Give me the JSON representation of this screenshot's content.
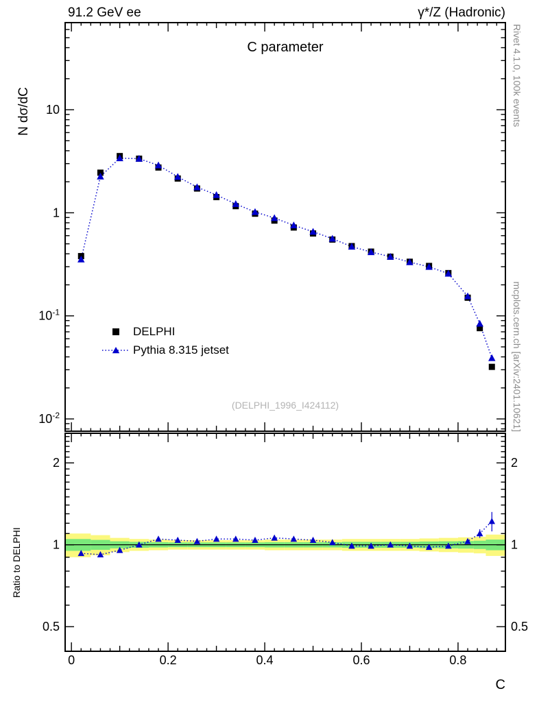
{
  "texts": {
    "header_left": "91.2 GeV ee",
    "header_right": "γ*/Z (Hadronic)",
    "right_top": "Rivet 4.1.0, 100k events",
    "right_bottom": "mcplots.cern.ch [arXiv:2401.10621]",
    "watermark": "(DELPHI_1996_I424112)"
  },
  "colors": {
    "mc_blue": "#0000cc",
    "data_black": "#000000",
    "band_yellow": "#fbf87e",
    "band_green": "#7be87b",
    "frame_black": "#000000",
    "gray_label": "#8c8c8c",
    "watermark_gray": "#b4b4b4"
  },
  "chart_data": {
    "type": "line",
    "title": "C parameter",
    "xlabel": "C",
    "ylabel": "N dσ/dC",
    "ratio_ylabel": "Ratio to DELPHI",
    "legend_position": "middle-left",
    "x_range": [
      -0.013,
      0.898
    ],
    "y_range": [
      0.0076,
      70
    ],
    "ratio_range": [
      0.406,
      2.57
    ],
    "y_scale": "log",
    "ratio_scale": "log",
    "grid": false,
    "x": [
      0.02,
      0.06,
      0.1,
      0.14,
      0.18,
      0.22,
      0.26,
      0.3,
      0.34,
      0.38,
      0.42,
      0.46,
      0.5,
      0.54,
      0.58,
      0.62,
      0.66,
      0.7,
      0.74,
      0.78,
      0.82,
      0.845,
      0.87
    ],
    "series": [
      {
        "name": "DELPHI",
        "marker": "square",
        "color": "#000000",
        "values": [
          0.38,
          2.45,
          3.55,
          3.35,
          2.75,
          2.15,
          1.72,
          1.42,
          1.16,
          0.98,
          0.84,
          0.72,
          0.63,
          0.55,
          0.475,
          0.42,
          0.375,
          0.335,
          0.305,
          0.26,
          0.15,
          0.076,
          0.032
        ]
      },
      {
        "name": "Pythia 8.315 jetset",
        "marker": "triangle",
        "linestyle": "dotted",
        "color": "#0000cc",
        "values": [
          0.353,
          2.254,
          3.39,
          3.35,
          2.888,
          2.236,
          1.772,
          1.491,
          1.218,
          1.019,
          0.89,
          0.756,
          0.655,
          0.561,
          0.47,
          0.416,
          0.375,
          0.332,
          0.299,
          0.257,
          0.155,
          0.084,
          0.039
        ]
      }
    ],
    "ratio": {
      "name": "Pythia/DELPHI",
      "values": [
        0.93,
        0.92,
        0.955,
        1.0,
        1.05,
        1.04,
        1.03,
        1.05,
        1.05,
        1.04,
        1.06,
        1.05,
        1.04,
        1.02,
        0.99,
        0.99,
        1.0,
        0.99,
        0.98,
        0.99,
        1.03,
        1.1,
        1.22
      ],
      "err": [
        0.02,
        0.015,
        0.01,
        0.008,
        0.008,
        0.007,
        0.007,
        0.007,
        0.007,
        0.007,
        0.008,
        0.008,
        0.008,
        0.009,
        0.009,
        0.01,
        0.01,
        0.012,
        0.012,
        0.015,
        0.02,
        0.04,
        0.1
      ],
      "band_yellow_halfwidth": [
        0.1,
        0.085,
        0.06,
        0.05,
        0.045,
        0.04,
        0.04,
        0.04,
        0.04,
        0.04,
        0.045,
        0.045,
        0.045,
        0.045,
        0.05,
        0.05,
        0.05,
        0.05,
        0.055,
        0.06,
        0.065,
        0.07,
        0.09
      ],
      "band_green_halfwidth": [
        0.05,
        0.042,
        0.03,
        0.025,
        0.022,
        0.02,
        0.02,
        0.02,
        0.02,
        0.02,
        0.022,
        0.022,
        0.022,
        0.022,
        0.025,
        0.025,
        0.025,
        0.025,
        0.028,
        0.03,
        0.032,
        0.035,
        0.045
      ]
    },
    "x_ticks": {
      "major": [
        0,
        0.2,
        0.4,
        0.6,
        0.8
      ],
      "labels": [
        "0",
        "0.2",
        "0.4",
        "0.6",
        "0.8"
      ],
      "minor_step": 0.02
    },
    "y_ticks_main": [
      {
        "v": 10,
        "base": "10",
        "exp": ""
      },
      {
        "v": 1,
        "base": "1",
        "exp": ""
      },
      {
        "v": 0.1,
        "base": "10",
        "exp": "-1"
      },
      {
        "v": 0.01,
        "base": "10",
        "exp": "-2"
      }
    ],
    "y_ticks_ratio": [
      {
        "v": 2,
        "label": "2"
      },
      {
        "v": 1,
        "label": "1"
      },
      {
        "v": 0.5,
        "label": "0.5"
      }
    ]
  }
}
